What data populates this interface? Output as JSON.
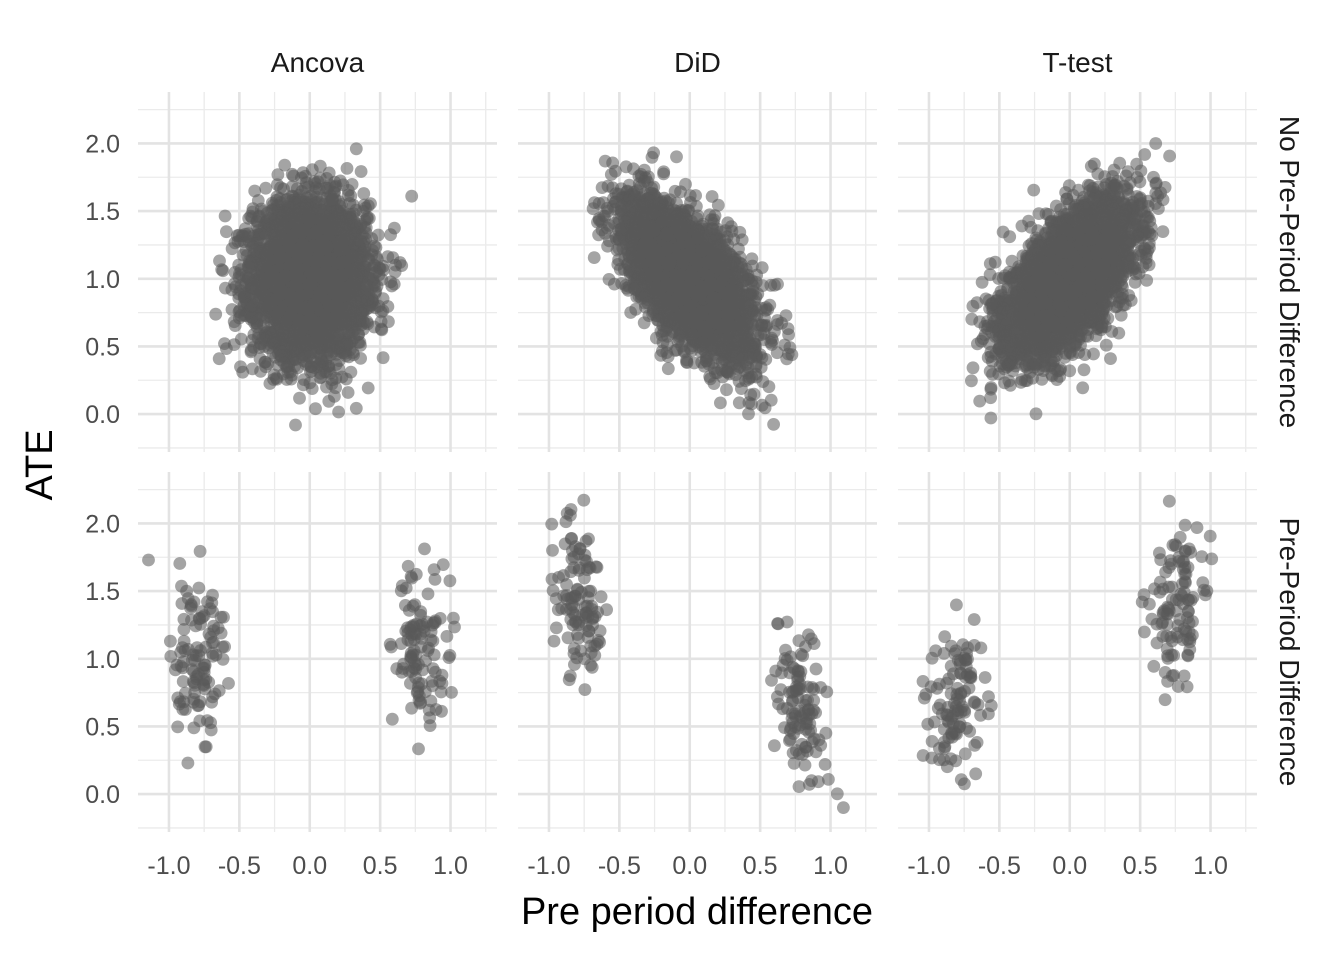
{
  "chart_data": {
    "type": "scatter",
    "xlabel": "Pre period difference",
    "ylabel": "ATE",
    "xlim": [
      -1.22,
      1.33
    ],
    "ylim": [
      -0.28,
      2.38
    ],
    "xticks": [
      -1.0,
      -0.5,
      0.0,
      0.5,
      1.0
    ],
    "xtick_labels": [
      "-1.0",
      "-0.5",
      "0.0",
      "0.5",
      "1.0"
    ],
    "yticks": [
      0.0,
      0.5,
      1.0,
      1.5,
      2.0
    ],
    "ytick_labels": [
      "0.0",
      "0.5",
      "1.0",
      "1.5",
      "2.0"
    ],
    "grid": true,
    "point_color": "#595959",
    "point_opacity": 0.55,
    "columns": [
      "Ancova",
      "DiD",
      "T-test"
    ],
    "rows": [
      "No Pre-Period Difference",
      "Pre-Period Difference"
    ],
    "panels": [
      {
        "row": "No Pre-Period Difference",
        "col": "Ancova",
        "n": 4000,
        "cloud": {
          "x_mean": 0.0,
          "x_sd": 0.2,
          "y_mean": 1.0,
          "y_sd": 0.28,
          "slope": 0.0
        },
        "x_range": [
          -0.7,
          0.85
        ],
        "y_range": [
          -0.1,
          2.0
        ]
      },
      {
        "row": "No Pre-Period Difference",
        "col": "DiD",
        "n": 4000,
        "cloud": {
          "x_mean": 0.0,
          "x_sd": 0.22,
          "y_mean": 1.0,
          "y_sd": 0.22,
          "slope": -0.75
        },
        "x_range": [
          -0.7,
          0.85
        ],
        "y_range": [
          -0.12,
          2.2
        ]
      },
      {
        "row": "No Pre-Period Difference",
        "col": "T-test",
        "n": 4000,
        "cloud": {
          "x_mean": 0.0,
          "x_sd": 0.22,
          "y_mean": 1.0,
          "y_sd": 0.22,
          "slope": 0.75
        },
        "x_range": [
          -0.75,
          0.85
        ],
        "y_range": [
          -0.2,
          2.03
        ]
      },
      {
        "row": "Pre-Period Difference",
        "col": "Ancova",
        "n": 220,
        "clusters": [
          {
            "x_mean": -0.8,
            "x_sd": 0.1,
            "y_mean": 1.0,
            "y_sd": 0.35,
            "slope": 0.0,
            "n": 110
          },
          {
            "x_mean": 0.78,
            "x_sd": 0.1,
            "y_mean": 1.0,
            "y_sd": 0.35,
            "slope": 0.0,
            "n": 110
          }
        ],
        "x_range": [
          -1.15,
          1.25
        ],
        "y_range": [
          0.15,
          2.0
        ]
      },
      {
        "row": "Pre-Period Difference",
        "col": "DiD",
        "n": 220,
        "clusters": [
          {
            "x_mean": -0.8,
            "x_sd": 0.1,
            "y_mean": 1.45,
            "y_sd": 0.3,
            "slope": -0.75,
            "n": 110
          },
          {
            "x_mean": 0.78,
            "x_sd": 0.1,
            "y_mean": 0.58,
            "y_sd": 0.3,
            "slope": -0.75,
            "n": 110
          }
        ],
        "x_range": [
          -1.05,
          1.25
        ],
        "y_range": [
          -0.12,
          2.27
        ]
      },
      {
        "row": "Pre-Period Difference",
        "col": "T-test",
        "n": 220,
        "clusters": [
          {
            "x_mean": -0.8,
            "x_sd": 0.1,
            "y_mean": 0.65,
            "y_sd": 0.3,
            "slope": 0.75,
            "n": 110
          },
          {
            "x_mean": 0.78,
            "x_sd": 0.1,
            "y_mean": 1.35,
            "y_sd": 0.3,
            "slope": 0.75,
            "n": 110
          }
        ],
        "x_range": [
          -1.1,
          1.3
        ],
        "y_range": [
          -0.05,
          2.17
        ]
      }
    ]
  }
}
